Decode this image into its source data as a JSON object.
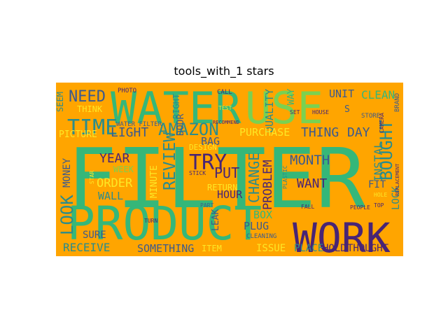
{
  "chart_data": {
    "type": "wordcloud",
    "title": "tools_with_1 stars",
    "background_color": "#FFA500",
    "colors": {
      "green": "#35B779",
      "lightgreen": "#7AD151",
      "teal": "#2A8C8C",
      "blue": "#3B5A8E",
      "purple": "#482475",
      "yellow": "#FDE725"
    },
    "words": [
      {
        "text": "WATER",
        "color": "green"
      },
      {
        "text": "USE",
        "color": "lightgreen"
      },
      {
        "text": "FILTER",
        "color": "green"
      },
      {
        "text": "PRODUCT",
        "color": "green"
      },
      {
        "text": "WORK",
        "color": "purple"
      },
      {
        "text": "TIME",
        "color": "teal"
      },
      {
        "text": "NEED",
        "color": "blue"
      },
      {
        "text": "AMAZON",
        "color": "teal"
      },
      {
        "text": "TRY",
        "color": "purple"
      },
      {
        "text": "BOUGHT",
        "color": "teal"
      },
      {
        "text": "MONTH",
        "color": "blue"
      },
      {
        "text": "LOOK",
        "color": "teal"
      },
      {
        "text": "REVIEW",
        "color": "teal"
      },
      {
        "text": "CHANGE",
        "color": "teal"
      },
      {
        "text": "PROBLEM",
        "color": "purple"
      },
      {
        "text": "THING",
        "color": "blue"
      },
      {
        "text": "DAY",
        "color": "blue"
      },
      {
        "text": "LIGHT",
        "color": "blue"
      },
      {
        "text": "YEAR",
        "color": "purple"
      },
      {
        "text": "ORDER",
        "color": "yellow"
      },
      {
        "text": "PUT",
        "color": "purple"
      },
      {
        "text": "WANT",
        "color": "purple"
      },
      {
        "text": "INSTAL",
        "color": "teal"
      },
      {
        "text": "CLEAN",
        "color": "green"
      },
      {
        "text": "UNIT",
        "color": "blue"
      },
      {
        "text": "QUALITY",
        "color": "teal"
      },
      {
        "text": "RECEIVE",
        "color": "teal"
      },
      {
        "text": "SOMETHING",
        "color": "blue"
      },
      {
        "text": "ISSUE",
        "color": "yellow"
      },
      {
        "text": "PLACE",
        "color": "teal"
      },
      {
        "text": "HOLD",
        "color": "purple"
      },
      {
        "text": "THOUGHT",
        "color": "purple"
      },
      {
        "text": "PURCHASE",
        "color": "yellow"
      },
      {
        "text": "BAG",
        "color": "blue"
      },
      {
        "text": "MONEY",
        "color": "blue"
      },
      {
        "text": "WALL",
        "color": "teal"
      },
      {
        "text": "HOUR",
        "color": "purple"
      },
      {
        "text": "PLUG",
        "color": "blue"
      },
      {
        "text": "BOX",
        "color": "green"
      },
      {
        "text": "SURE",
        "color": "blue"
      },
      {
        "text": "MINUTE",
        "color": "yellow"
      },
      {
        "text": "LEAK",
        "color": "blue"
      },
      {
        "text": "FIT",
        "color": "blue"
      },
      {
        "text": "WAY",
        "color": "green"
      },
      {
        "text": "PICTURE",
        "color": "yellow"
      },
      {
        "text": "DOOR",
        "color": "blue"
      },
      {
        "text": "LOCK",
        "color": "teal"
      },
      {
        "text": "S",
        "color": "blue"
      },
      {
        "text": "RETURN",
        "color": "yellow"
      },
      {
        "text": "SEEM",
        "color": "teal"
      },
      {
        "text": "THINK",
        "color": "yellow"
      },
      {
        "text": "DESIGN",
        "color": "yellow"
      },
      {
        "text": "WEEK",
        "color": "lightgreen"
      },
      {
        "text": "RIGHT",
        "color": "teal"
      },
      {
        "text": "ITEM",
        "color": "yellow"
      },
      {
        "text": "CLEANING",
        "color": "blue"
      },
      {
        "text": "STORE",
        "color": "blue"
      },
      {
        "text": "WATER FILTER",
        "color": "blue"
      },
      {
        "text": "PHOTO",
        "color": "purple"
      },
      {
        "text": "CALL",
        "color": "purple"
      },
      {
        "text": "SET",
        "color": "purple"
      },
      {
        "text": "HOUSE",
        "color": "purple"
      },
      {
        "text": "RECOMMEND",
        "color": "purple"
      },
      {
        "text": "BRAND",
        "color": "blue"
      },
      {
        "text": "CAMERA",
        "color": "purple"
      },
      {
        "text": "REPLACEMENT",
        "color": "purple"
      },
      {
        "text": "FALL",
        "color": "purple"
      },
      {
        "text": "PEOPLE",
        "color": "purple"
      },
      {
        "text": "TOP",
        "color": "purple"
      },
      {
        "text": "STICK",
        "color": "purple"
      },
      {
        "text": "TURN",
        "color": "purple"
      },
      {
        "text": "PLASTIC",
        "color": "teal"
      },
      {
        "text": "TEST",
        "color": "yellow"
      },
      {
        "text": "PART",
        "color": "blue"
      },
      {
        "text": "STAR",
        "color": "yellow"
      },
      {
        "text": "HOLE",
        "color": "yellow"
      }
    ]
  }
}
